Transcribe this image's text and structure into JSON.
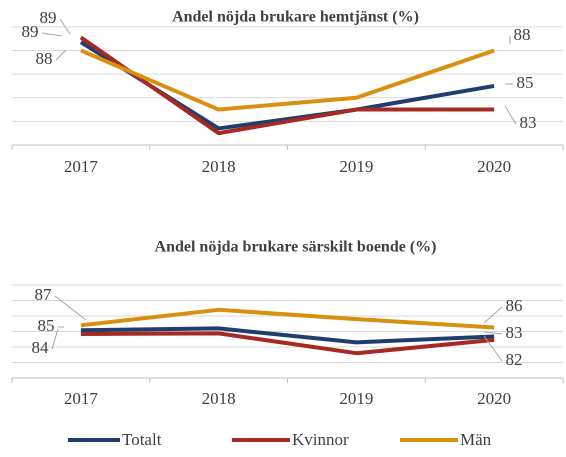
{
  "chart_data": [
    {
      "type": "line",
      "title": "Andel nöjda brukare hemtjänst (%)",
      "categories": [
        "2017",
        "2018",
        "2019",
        "2020"
      ],
      "ylim": [
        80,
        91
      ],
      "yticks": [
        80,
        82,
        84,
        86,
        88,
        90
      ],
      "grid": true,
      "series": [
        {
          "name": "Totalt",
          "color": "#1f3e6e",
          "values": [
            88.7,
            81.4,
            83,
            85
          ],
          "value_labels": [
            "89",
            null,
            null,
            "85"
          ]
        },
        {
          "name": "Kvinnor",
          "color": "#a52a23",
          "values": [
            89.1,
            81,
            83,
            83
          ],
          "value_labels": [
            "89",
            null,
            null,
            "83"
          ]
        },
        {
          "name": "Män",
          "color": "#d9900e",
          "values": [
            88,
            83,
            84,
            88
          ],
          "value_labels": [
            "88",
            null,
            null,
            "88"
          ]
        }
      ]
    },
    {
      "type": "line",
      "title": "Andel nöjda brukare särskilt boende (%)",
      "categories": [
        "2017",
        "2018",
        "2019",
        "2020"
      ],
      "ylim": [
        70,
        100
      ],
      "yticks": [
        70,
        75,
        80,
        85,
        90,
        95,
        100
      ],
      "grid": true,
      "series": [
        {
          "color": "#1f3e6e",
          "values": [
            85.4,
            86,
            81.5,
            83.4
          ],
          "value_labels": [
            "85",
            null,
            null,
            "83"
          ]
        },
        {
          "color": "#a52a23",
          "values": [
            84.2,
            84.4,
            78,
            82.3
          ],
          "value_labels": [
            "84",
            null,
            null,
            "82"
          ]
        },
        {
          "color": "#d9900e",
          "values": [
            87,
            92,
            89,
            86.3
          ],
          "value_labels": [
            "87",
            null,
            null,
            "86"
          ]
        }
      ]
    }
  ]
}
